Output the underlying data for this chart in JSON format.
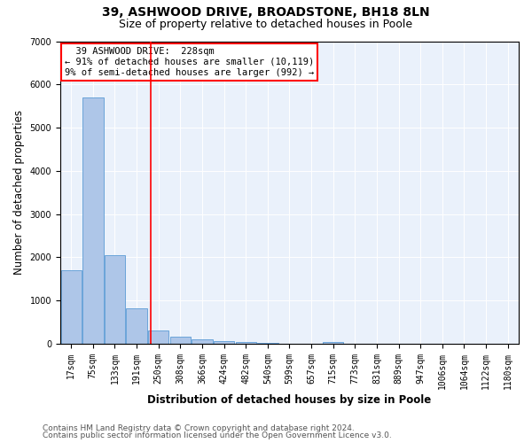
{
  "title": "39, ASHWOOD DRIVE, BROADSTONE, BH18 8LN",
  "subtitle": "Size of property relative to detached houses in Poole",
  "xlabel": "Distribution of detached houses by size in Poole",
  "ylabel": "Number of detached properties",
  "footnote1": "Contains HM Land Registry data © Crown copyright and database right 2024.",
  "footnote2": "Contains public sector information licensed under the Open Government Licence v3.0.",
  "bar_labels": [
    "17sqm",
    "75sqm",
    "133sqm",
    "191sqm",
    "250sqm",
    "308sqm",
    "366sqm",
    "424sqm",
    "482sqm",
    "540sqm",
    "599sqm",
    "657sqm",
    "715sqm",
    "773sqm",
    "831sqm",
    "889sqm",
    "947sqm",
    "1006sqm",
    "1064sqm",
    "1122sqm",
    "1180sqm"
  ],
  "bar_values": [
    1700,
    5700,
    2050,
    820,
    300,
    170,
    95,
    60,
    35,
    20,
    10,
    10,
    50,
    5,
    5,
    5,
    5,
    5,
    5,
    5,
    5
  ],
  "bar_color": "#aec6e8",
  "bar_edge_color": "#5b9bd5",
  "vline_color": "red",
  "annotation_line1": "  39 ASHWOOD DRIVE:  228sqm",
  "annotation_line2": "← 91% of detached houses are smaller (10,119)",
  "annotation_line3": "9% of semi-detached houses are larger (992) →",
  "annotation_box_color": "white",
  "annotation_edge_color": "red",
  "ylim": [
    0,
    7000
  ],
  "title_fontsize": 10,
  "subtitle_fontsize": 9,
  "axis_label_fontsize": 8.5,
  "tick_fontsize": 7,
  "footnote_fontsize": 6.5,
  "annotation_fontsize": 7.5
}
